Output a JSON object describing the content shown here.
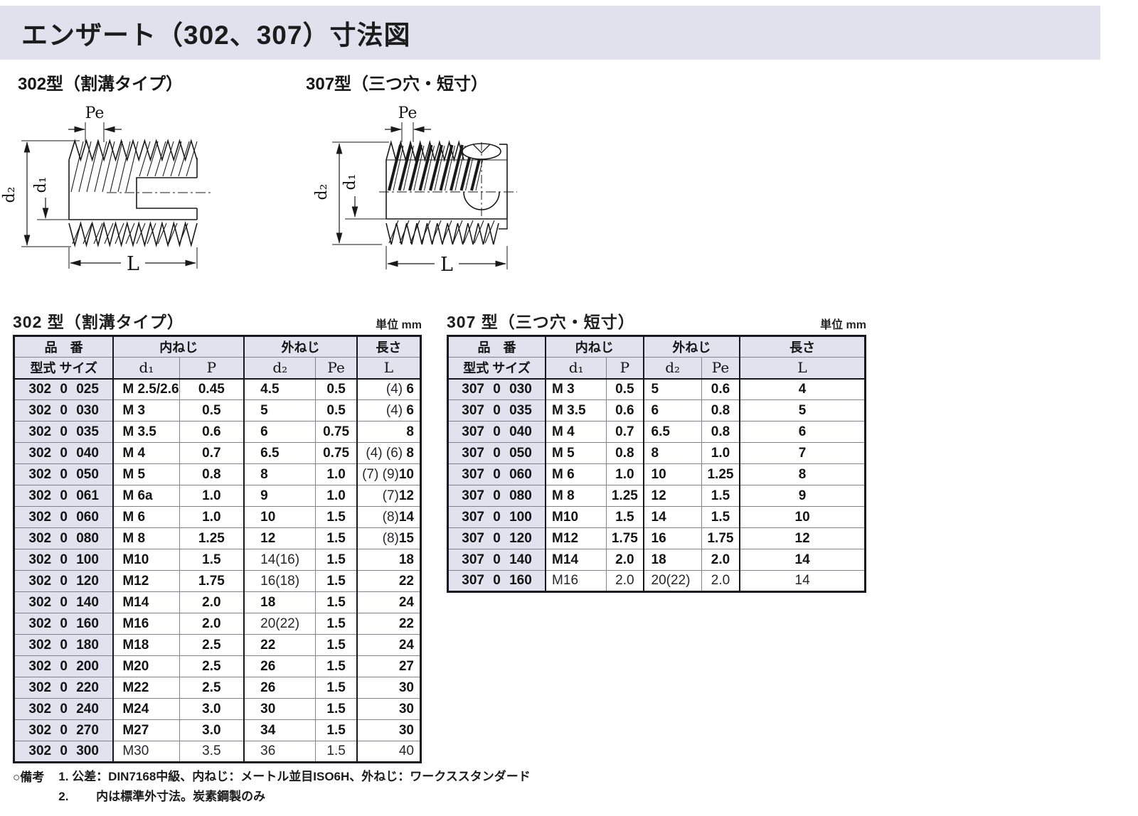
{
  "page": {
    "title": "エンザート（302、307）寸法図"
  },
  "figures": {
    "f302": {
      "label": "302型（割溝タイプ）",
      "pe": "Pe",
      "d2": "d₂",
      "d1": "d₁",
      "L": "L"
    },
    "f307": {
      "label": "307型（三つ穴・短寸）",
      "pe": "Pe",
      "d2": "d₂",
      "d1": "d₁",
      "L": "L"
    }
  },
  "tables": [
    {
      "id": "t302",
      "title": "302 型（割溝タイプ）",
      "unit": "単位 mm",
      "header": {
        "part_no": "品　番",
        "inner": "内ねじ",
        "outer": "外ねじ",
        "length": "長さ",
        "model_size": "型式 サイズ",
        "d1": "d₁",
        "p": "P",
        "d2": "d₂",
        "pe": "Pe",
        "l": "L"
      },
      "rows": [
        {
          "no": "302 0 025",
          "d1": "M 2.5/2.6",
          "p": "0.45",
          "d2": "4.5",
          "pe": "0.5",
          "l": "(4) 6"
        },
        {
          "no": "302 0 030",
          "d1": "M 3",
          "p": "0.5",
          "d2": "5",
          "pe": "0.5",
          "l": "(4) 6"
        },
        {
          "no": "302 0 035",
          "d1": "M 3.5",
          "p": "0.6",
          "d2": "6",
          "pe": "0.75",
          "l": "8"
        },
        {
          "no": "302 0 040",
          "d1": "M 4",
          "p": "0.7",
          "d2": "6.5",
          "pe": "0.75",
          "l": "(4) (6) 8"
        },
        {
          "no": "302 0 050",
          "d1": "M 5",
          "p": "0.8",
          "d2": "8",
          "pe": "1.0",
          "l": "(7) (9)10"
        },
        {
          "no": "302 0 061",
          "d1": "M 6a",
          "p": "1.0",
          "d2": "9",
          "pe": "1.0",
          "l": "(7)12"
        },
        {
          "no": "302 0 060",
          "d1": "M 6",
          "p": "1.0",
          "d2": "10",
          "pe": "1.5",
          "l": "(8)14"
        },
        {
          "no": "302 0 080",
          "d1": "M 8",
          "p": "1.25",
          "d2": "12",
          "pe": "1.5",
          "l": "(8)15"
        },
        {
          "no": "302 0 100",
          "d1": "M10",
          "p": "1.5",
          "d2": "14(16)",
          "pe": "1.5",
          "l": "18"
        },
        {
          "no": "302 0 120",
          "d1": "M12",
          "p": "1.75",
          "d2": "16(18)",
          "pe": "1.5",
          "l": "22"
        },
        {
          "no": "302 0 140",
          "d1": "M14",
          "p": "2.0",
          "d2": "18",
          "pe": "1.5",
          "l": "24"
        },
        {
          "no": "302 0 160",
          "d1": "M16",
          "p": "2.0",
          "d2": "20(22)",
          "pe": "1.5",
          "l": "22"
        },
        {
          "no": "302 0 180",
          "d1": "M18",
          "p": "2.5",
          "d2": "22",
          "pe": "1.5",
          "l": "24"
        },
        {
          "no": "302 0 200",
          "d1": "M20",
          "p": "2.5",
          "d2": "26",
          "pe": "1.5",
          "l": "27"
        },
        {
          "no": "302 0 220",
          "d1": "M22",
          "p": "2.5",
          "d2": "26",
          "pe": "1.5",
          "l": "30"
        },
        {
          "no": "302 0 240",
          "d1": "M24",
          "p": "3.0",
          "d2": "30",
          "pe": "1.5",
          "l": "30"
        },
        {
          "no": "302 0 270",
          "d1": "M27",
          "p": "3.0",
          "d2": "34",
          "pe": "1.5",
          "l": "30"
        },
        {
          "no": "302 0 300",
          "d1": "M30",
          "p": "3.5",
          "d2": "36",
          "pe": "1.5",
          "l": "40",
          "light": true
        }
      ]
    },
    {
      "id": "t307",
      "title": "307 型（三つ穴・短寸）",
      "unit": "単位 mm",
      "header": {
        "part_no": "品　番",
        "inner": "内ねじ",
        "outer": "外ねじ",
        "length": "長さ",
        "model_size": "型式 サイズ",
        "d1": "d₁",
        "p": "P",
        "d2": "d₂",
        "pe": "Pe",
        "l": "L"
      },
      "rows": [
        {
          "no": "307 0 030",
          "d1": "M 3",
          "p": "0.5",
          "d2": "5",
          "pe": "0.6",
          "l": "4"
        },
        {
          "no": "307 0 035",
          "d1": "M 3.5",
          "p": "0.6",
          "d2": "6",
          "pe": "0.8",
          "l": "5"
        },
        {
          "no": "307 0 040",
          "d1": "M 4",
          "p": "0.7",
          "d2": "6.5",
          "pe": "0.8",
          "l": "6"
        },
        {
          "no": "307 0 050",
          "d1": "M 5",
          "p": "0.8",
          "d2": "8",
          "pe": "1.0",
          "l": "7"
        },
        {
          "no": "307 0 060",
          "d1": "M 6",
          "p": "1.0",
          "d2": "10",
          "pe": "1.25",
          "l": "8"
        },
        {
          "no": "307 0 080",
          "d1": "M 8",
          "p": "1.25",
          "d2": "12",
          "pe": "1.5",
          "l": "9"
        },
        {
          "no": "307 0 100",
          "d1": "M10",
          "p": "1.5",
          "d2": "14",
          "pe": "1.5",
          "l": "10"
        },
        {
          "no": "307 0 120",
          "d1": "M12",
          "p": "1.75",
          "d2": "16",
          "pe": "1.75",
          "l": "12"
        },
        {
          "no": "307 0 140",
          "d1": "M14",
          "p": "2.0",
          "d2": "18",
          "pe": "2.0",
          "l": "14"
        },
        {
          "no": "307 0 160",
          "d1": "M16",
          "p": "2.0",
          "d2": "20(22)",
          "pe": "2.0",
          "l": "14",
          "light": true
        }
      ]
    }
  ],
  "notes": {
    "mark": "○備考",
    "line1": "1. 公差：DIN7168中級、内ねじ：メートル並目ISO6H、外ねじ：ワークススタンダード",
    "line2": "2.　　 内は標準外寸法。炭素鋼製のみ"
  },
  "colors": {
    "band": "#e1e1ee",
    "header_fill": "#e2e2ef",
    "thin_line": "#82828c",
    "thick_line": "#17171f"
  }
}
